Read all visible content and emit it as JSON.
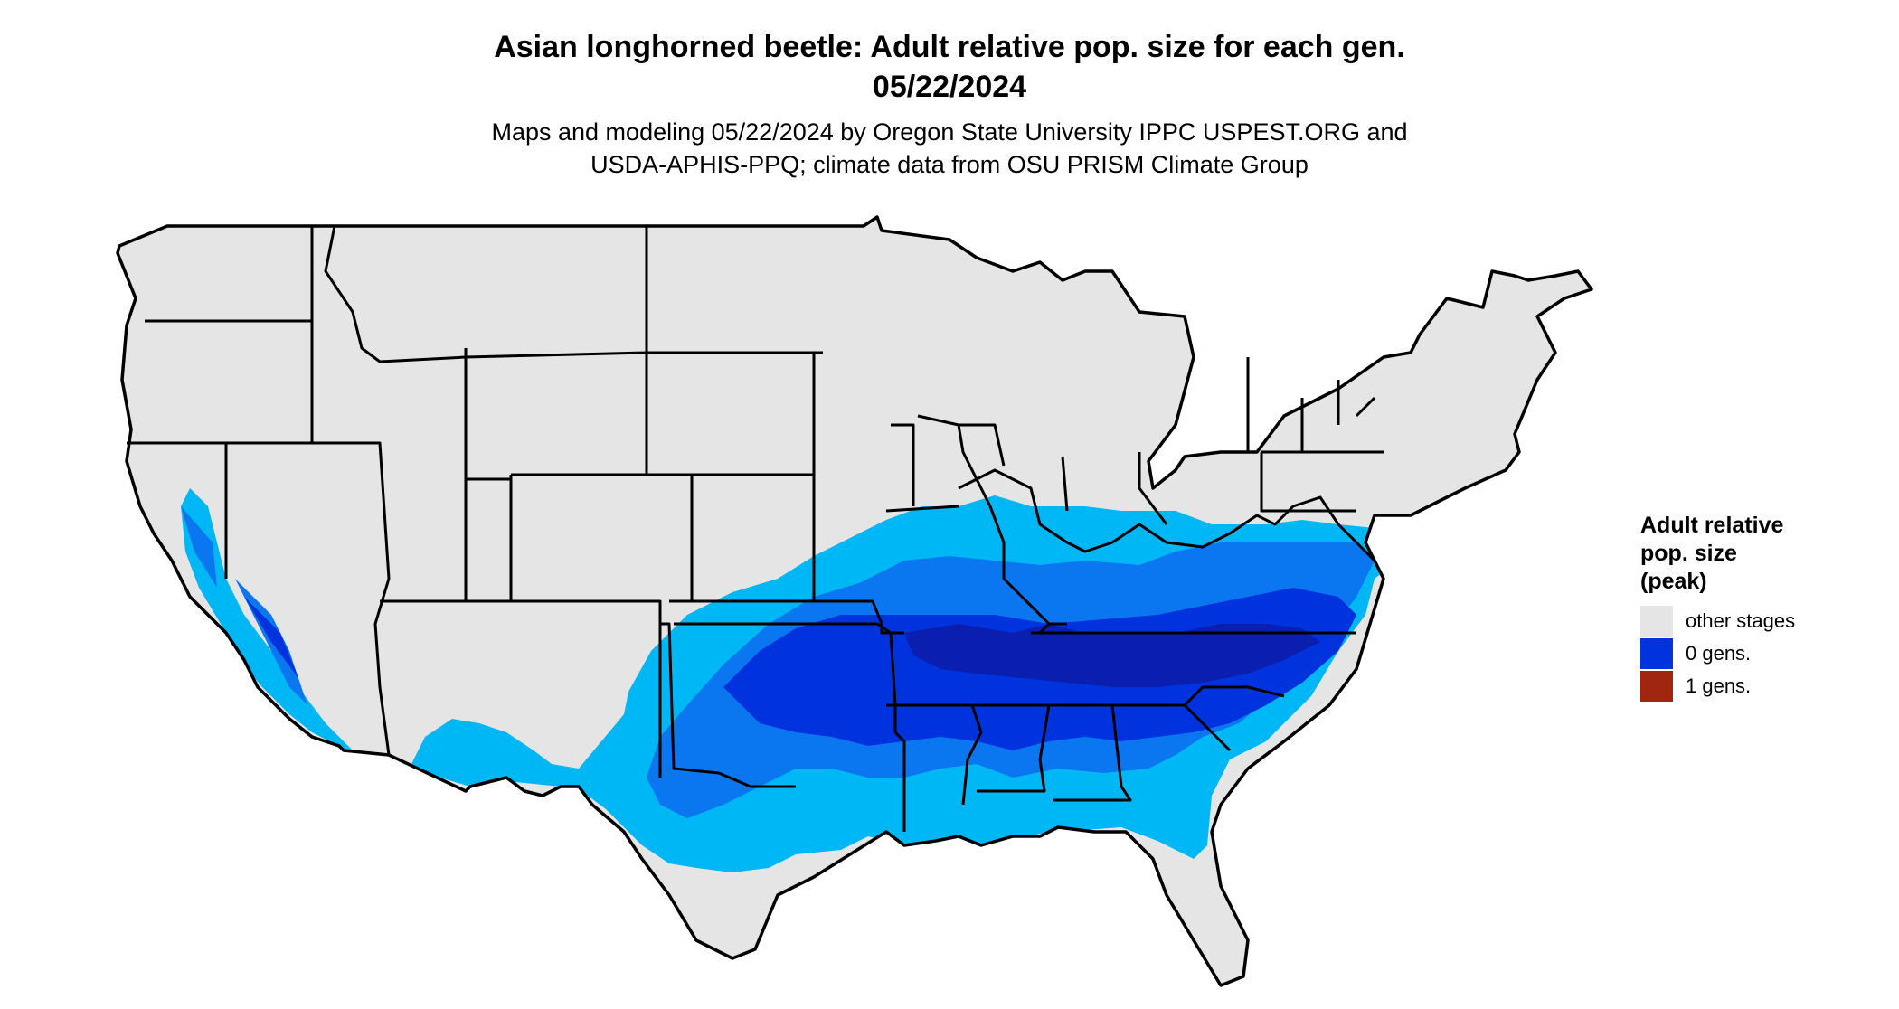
{
  "title_line1": "Asian longhorned beetle: Adult relative pop. size for each gen.",
  "title_line2": "05/22/2024",
  "subtitle_line1": "Maps and modeling 05/22/2024 by Oregon State University IPPC USPEST.ORG and",
  "subtitle_line2": "USDA-APHIS-PPQ; climate data from OSU PRISM Climate Group",
  "legend": {
    "title_line1": "Adult relative",
    "title_line2": "pop. size",
    "title_line3": "(peak)",
    "items": [
      {
        "label": "other stages",
        "color": "#e5e5e5"
      },
      {
        "label": "0 gens.",
        "color": "#0033dd"
      },
      {
        "label": "1 gens.",
        "color": "#a12610"
      }
    ]
  },
  "colors": {
    "land": "#e5e5e5",
    "light_blue": "#00b7f5",
    "medium_blue": "#0a76f0",
    "dark_blue": "#0033dd",
    "deep_blue": "#0a1fb0",
    "border": "#000000"
  }
}
